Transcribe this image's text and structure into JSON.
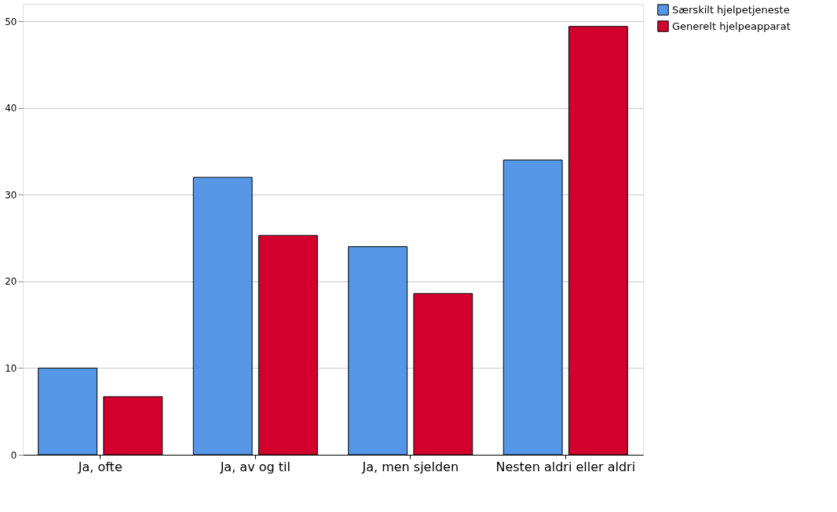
{
  "chart_data": {
    "type": "bar",
    "categories": [
      "Ja, ofte",
      "Ja, av og til",
      "Ja, men sjelden",
      "Nesten aldri eller aldri"
    ],
    "series": [
      {
        "name": "Særskilt hjelpetjeneste",
        "color": "#5596e6",
        "values": [
          10,
          32,
          24,
          34
        ]
      },
      {
        "name": "Generelt hjelpeapparat",
        "color": "#d3002e",
        "values": [
          6.7,
          25.3,
          18.6,
          49.4
        ]
      }
    ],
    "ylim": [
      0,
      52
    ],
    "yticks": [
      0,
      10,
      20,
      30,
      40,
      50
    ],
    "grid": "y",
    "legend": "top right"
  }
}
